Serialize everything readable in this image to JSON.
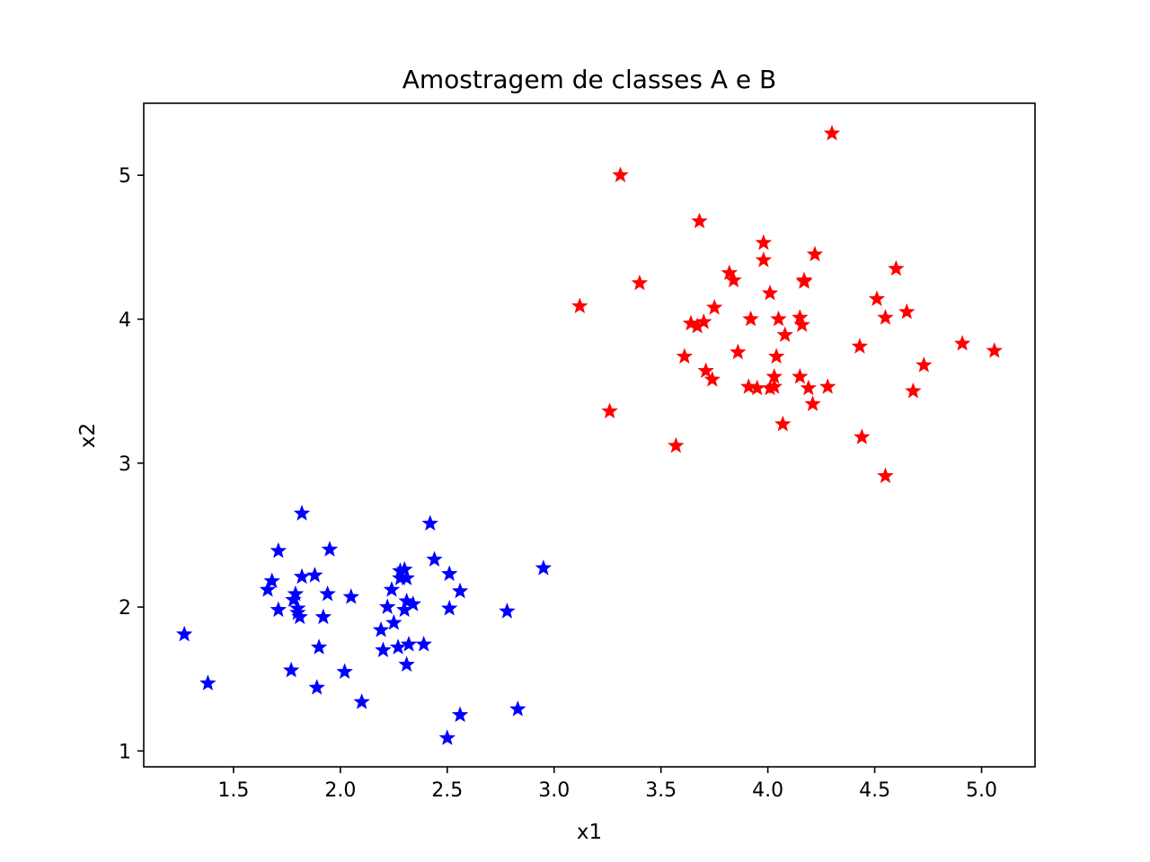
{
  "chart_data": {
    "type": "scatter",
    "title": "Amostragem de classes A e B",
    "xlabel": "x1",
    "ylabel": "x2",
    "xlim": [
      1.08,
      5.25
    ],
    "ylim": [
      0.89,
      5.5
    ],
    "xticks": [
      1.5,
      2.0,
      2.5,
      3.0,
      3.5,
      4.0,
      4.5,
      5.0
    ],
    "xtick_labels": [
      "1.5",
      "2.0",
      "2.5",
      "3.0",
      "3.5",
      "4.0",
      "4.5",
      "5.0"
    ],
    "yticks": [
      1,
      2,
      3,
      4,
      5
    ],
    "ytick_labels": [
      "1",
      "2",
      "3",
      "4",
      "5"
    ],
    "grid": false,
    "marker": "star",
    "series": [
      {
        "color": "#0000ff",
        "points": [
          [
            1.27,
            1.81
          ],
          [
            1.38,
            1.47
          ],
          [
            1.66,
            2.12
          ],
          [
            1.68,
            2.18
          ],
          [
            1.71,
            1.98
          ],
          [
            1.71,
            2.39
          ],
          [
            1.77,
            1.56
          ],
          [
            1.78,
            2.05
          ],
          [
            1.79,
            2.09
          ],
          [
            1.8,
            1.96
          ],
          [
            1.8,
            1.99
          ],
          [
            1.81,
            1.93
          ],
          [
            1.82,
            2.65
          ],
          [
            1.82,
            2.21
          ],
          [
            1.88,
            2.22
          ],
          [
            1.89,
            1.44
          ],
          [
            1.9,
            1.72
          ],
          [
            1.92,
            1.93
          ],
          [
            1.94,
            2.09
          ],
          [
            1.95,
            2.4
          ],
          [
            2.02,
            1.55
          ],
          [
            2.05,
            2.07
          ],
          [
            2.1,
            1.34
          ],
          [
            2.19,
            1.84
          ],
          [
            2.2,
            1.7
          ],
          [
            2.22,
            2.0
          ],
          [
            2.24,
            2.12
          ],
          [
            2.25,
            1.89
          ],
          [
            2.27,
            1.72
          ],
          [
            2.28,
            2.25
          ],
          [
            2.28,
            2.2
          ],
          [
            2.3,
            2.26
          ],
          [
            2.3,
            1.98
          ],
          [
            2.31,
            2.2
          ],
          [
            2.31,
            2.04
          ],
          [
            2.31,
            1.6
          ],
          [
            2.32,
            1.74
          ],
          [
            2.34,
            2.02
          ],
          [
            2.39,
            1.74
          ],
          [
            2.42,
            2.58
          ],
          [
            2.44,
            2.33
          ],
          [
            2.5,
            1.09
          ],
          [
            2.51,
            2.23
          ],
          [
            2.51,
            1.99
          ],
          [
            2.56,
            1.25
          ],
          [
            2.56,
            2.11
          ],
          [
            2.78,
            1.97
          ],
          [
            2.83,
            1.29
          ],
          [
            2.95,
            2.27
          ]
        ]
      },
      {
        "color": "#ff0000",
        "points": [
          [
            3.12,
            4.09
          ],
          [
            3.26,
            3.36
          ],
          [
            3.31,
            5.0
          ],
          [
            3.4,
            4.25
          ],
          [
            3.57,
            3.12
          ],
          [
            3.61,
            3.74
          ],
          [
            3.64,
            3.97
          ],
          [
            3.67,
            3.95
          ],
          [
            3.68,
            4.68
          ],
          [
            3.7,
            3.98
          ],
          [
            3.71,
            3.64
          ],
          [
            3.74,
            3.58
          ],
          [
            3.75,
            4.08
          ],
          [
            3.82,
            4.32
          ],
          [
            3.84,
            4.27
          ],
          [
            3.86,
            3.77
          ],
          [
            3.91,
            3.53
          ],
          [
            3.92,
            4.0
          ],
          [
            3.95,
            3.52
          ],
          [
            3.98,
            4.53
          ],
          [
            3.98,
            4.41
          ],
          [
            4.01,
            4.18
          ],
          [
            4.01,
            3.52
          ],
          [
            4.03,
            3.6
          ],
          [
            4.03,
            3.53
          ],
          [
            4.04,
            3.74
          ],
          [
            4.05,
            4.0
          ],
          [
            4.07,
            3.27
          ],
          [
            4.08,
            3.89
          ],
          [
            4.15,
            4.01
          ],
          [
            4.15,
            3.6
          ],
          [
            4.16,
            3.96
          ],
          [
            4.17,
            4.27
          ],
          [
            4.17,
            4.26
          ],
          [
            4.19,
            3.52
          ],
          [
            4.21,
            3.41
          ],
          [
            4.22,
            4.45
          ],
          [
            4.28,
            3.53
          ],
          [
            4.3,
            5.29
          ],
          [
            4.43,
            3.81
          ],
          [
            4.44,
            3.18
          ],
          [
            4.51,
            4.14
          ],
          [
            4.55,
            2.91
          ],
          [
            4.55,
            4.01
          ],
          [
            4.6,
            4.35
          ],
          [
            4.65,
            4.05
          ],
          [
            4.68,
            3.5
          ],
          [
            4.73,
            3.68
          ],
          [
            4.91,
            3.83
          ],
          [
            5.06,
            3.78
          ]
        ]
      }
    ]
  }
}
